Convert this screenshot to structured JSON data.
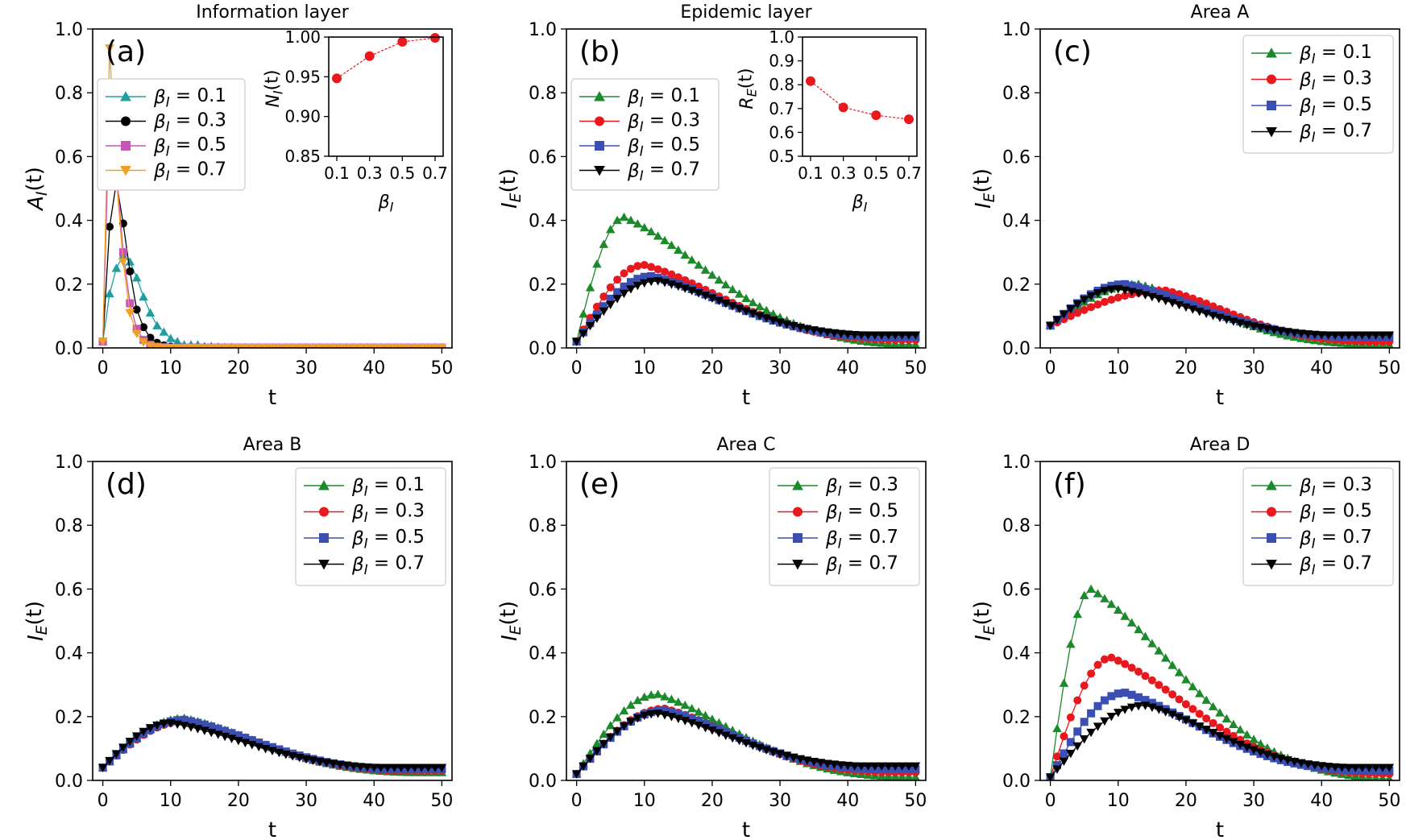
{
  "colors": {
    "teal": "#1f9e9e",
    "black": "#000000",
    "pink": "#c855b6",
    "orange": "#f0a020",
    "green": "#1a8a2a",
    "red": "#e8181e",
    "blue": "#3a4eb3",
    "inset_red": "#e8181e"
  },
  "chart_data": [
    {
      "id": "a",
      "type": "line",
      "panel_label": "(a)",
      "title": "Information layer",
      "xlabel": "t",
      "ylabel": "A_I(t)",
      "xlim": [
        -1.5,
        51.5
      ],
      "ylim": [
        0,
        1.0
      ],
      "xticks": [
        "0",
        "10",
        "20",
        "30",
        "40",
        "50"
      ],
      "yticks": [
        "0.0",
        "0.2",
        "0.4",
        "0.6",
        "0.8",
        "1.0"
      ],
      "legend": {
        "position": "upper-left",
        "entries": [
          "β_I = 0.1",
          "β_I = 0.3",
          "β_I = 0.5",
          "β_I = 0.7"
        ]
      },
      "series": [
        {
          "name": "β_I = 0.1",
          "color": "teal",
          "marker": "triangle-up",
          "values": [
            0.02,
            0.17,
            0.25,
            0.29,
            0.27,
            0.22,
            0.16,
            0.11,
            0.07,
            0.05,
            0.03,
            0.02,
            0.01,
            0.01,
            0.01,
            0.005,
            0.005,
            0.003,
            0.002,
            0.002,
            0.001,
            0.001,
            0.001,
            0.001,
            0.001,
            0.001,
            0.001,
            0.001,
            0.001,
            0.001,
            0.001,
            0.001,
            0.001,
            0.001,
            0.001,
            0.001,
            0.001,
            0.001,
            0.001,
            0.001,
            0.001,
            0.001,
            0.001,
            0.001,
            0.001,
            0.001,
            0.001,
            0.001,
            0.001,
            0.001,
            0.001
          ]
        },
        {
          "name": "β_I = 0.3",
          "color": "black",
          "marker": "circle",
          "values": [
            0.02,
            0.38,
            0.52,
            0.39,
            0.24,
            0.12,
            0.065,
            0.032,
            0.016,
            0.008,
            0.004,
            0.002,
            0.001,
            0.001,
            0.001,
            0.001,
            0.001,
            0.001,
            0.001,
            0.001,
            0.001,
            0.001,
            0.001,
            0.001,
            0.001,
            0.001,
            0.001,
            0.001,
            0.001,
            0.001,
            0.001,
            0.001,
            0.001,
            0.001,
            0.001,
            0.001,
            0.001,
            0.001,
            0.001,
            0.001,
            0.001,
            0.001,
            0.001,
            0.001,
            0.001,
            0.001,
            0.001,
            0.001,
            0.001,
            0.001,
            0.001
          ]
        },
        {
          "name": "β_I = 0.5",
          "color": "pink",
          "marker": "square",
          "values": [
            0.02,
            0.76,
            0.56,
            0.3,
            0.14,
            0.06,
            0.025,
            0.01,
            0.004,
            0.002,
            0.001,
            0.001,
            0.001,
            0.001,
            0.001,
            0.001,
            0.001,
            0.001,
            0.001,
            0.001,
            0.001,
            0.001,
            0.001,
            0.001,
            0.001,
            0.001,
            0.001,
            0.001,
            0.001,
            0.001,
            0.001,
            0.001,
            0.001,
            0.001,
            0.001,
            0.001,
            0.001,
            0.001,
            0.001,
            0.001,
            0.001,
            0.001,
            0.001,
            0.001,
            0.001,
            0.001,
            0.001,
            0.001,
            0.001,
            0.001,
            0.001
          ]
        },
        {
          "name": "β_I = 0.7",
          "color": "orange",
          "marker": "triangle-down",
          "values": [
            0.02,
            0.94,
            0.53,
            0.27,
            0.11,
            0.045,
            0.018,
            0.007,
            0.003,
            0.001,
            0.001,
            0.001,
            0.001,
            0.001,
            0.001,
            0.001,
            0.001,
            0.001,
            0.001,
            0.001,
            0.001,
            0.001,
            0.001,
            0.001,
            0.001,
            0.001,
            0.001,
            0.001,
            0.001,
            0.001,
            0.001,
            0.001,
            0.001,
            0.001,
            0.001,
            0.001,
            0.001,
            0.001,
            0.001,
            0.001,
            0.001,
            0.001,
            0.001,
            0.001,
            0.001,
            0.001,
            0.001,
            0.001,
            0.001,
            0.001,
            0.001
          ]
        }
      ],
      "inset": {
        "xlabel": "β_I",
        "ylabel": "N_I(t)",
        "categories": [
          "0.1",
          "0.3",
          "0.5",
          "0.7"
        ],
        "values": [
          0.948,
          0.976,
          0.994,
          0.999
        ],
        "ylim": [
          0.85,
          1.0
        ],
        "yticks": [
          "0.85",
          "0.90",
          "0.95",
          "1.00"
        ]
      }
    },
    {
      "id": "b",
      "type": "line",
      "panel_label": "(b)",
      "title": "Epidemic layer",
      "xlabel": "t",
      "ylabel": "I_E(t)",
      "xlim": [
        -1.5,
        51.5
      ],
      "ylim": [
        0,
        1.0
      ],
      "xticks": [
        "0",
        "10",
        "20",
        "30",
        "40",
        "50"
      ],
      "yticks": [
        "0.0",
        "0.2",
        "0.4",
        "0.6",
        "0.8",
        "1.0"
      ],
      "legend": {
        "position": "upper-left",
        "entries": [
          "β_I = 0.1",
          "β_I = 0.3",
          "β_I = 0.5",
          "β_I = 0.7"
        ]
      },
      "curve_params": [
        {
          "peak": 0.41,
          "peak_t": 7,
          "end": 0.01
        },
        {
          "peak": 0.26,
          "peak_t": 10,
          "end": 0.025
        },
        {
          "peak": 0.225,
          "peak_t": 11,
          "end": 0.035
        },
        {
          "peak": 0.21,
          "peak_t": 12,
          "end": 0.04
        }
      ],
      "start": 0.02,
      "series_names": [
        "β_I = 0.1",
        "β_I = 0.3",
        "β_I = 0.5",
        "β_I = 0.7"
      ],
      "series_colors": [
        "green",
        "red",
        "blue",
        "black"
      ],
      "series_markers": [
        "triangle-up",
        "circle",
        "square",
        "triangle-down"
      ],
      "inset": {
        "xlabel": "β_I",
        "ylabel": "R_E(t)",
        "categories": [
          "0.1",
          "0.3",
          "0.5",
          "0.7"
        ],
        "values": [
          0.815,
          0.705,
          0.672,
          0.655
        ],
        "ylim": [
          0.5,
          1.0
        ],
        "yticks": [
          "0.5",
          "0.6",
          "0.7",
          "0.8",
          "0.9",
          "1.0"
        ]
      }
    },
    {
      "id": "c",
      "type": "line",
      "panel_label": "(c)",
      "title": "Area A",
      "xlabel": "t",
      "ylabel": "I_E(t)",
      "xlim": [
        -1.5,
        51.5
      ],
      "ylim": [
        0,
        1.0
      ],
      "xticks": [
        "0",
        "10",
        "20",
        "30",
        "40",
        "50"
      ],
      "yticks": [
        "0.0",
        "0.2",
        "0.4",
        "0.6",
        "0.8",
        "1.0"
      ],
      "legend": {
        "position": "upper-right",
        "entries": [
          "β_I = 0.1",
          "β_I = 0.3",
          "β_I = 0.5",
          "β_I = 0.7"
        ]
      },
      "curve_params": [
        {
          "peak": 0.2,
          "peak_t": 13,
          "end": 0.01
        },
        {
          "peak": 0.18,
          "peak_t": 17,
          "end": 0.02
        },
        {
          "peak": 0.2,
          "peak_t": 11,
          "end": 0.035
        },
        {
          "peak": 0.185,
          "peak_t": 10,
          "end": 0.04
        }
      ],
      "start": 0.07,
      "series_names": [
        "β_I = 0.1",
        "β_I = 0.3",
        "β_I = 0.5",
        "β_I = 0.7"
      ],
      "series_colors": [
        "green",
        "red",
        "blue",
        "black"
      ],
      "series_markers": [
        "triangle-up",
        "circle",
        "square",
        "triangle-down"
      ]
    },
    {
      "id": "d",
      "type": "line",
      "panel_label": "(d)",
      "title": "Area B",
      "xlabel": "t",
      "ylabel": "I_E(t)",
      "xlim": [
        -1.5,
        51.5
      ],
      "ylim": [
        0,
        1.0
      ],
      "xticks": [
        "0",
        "10",
        "20",
        "30",
        "40",
        "50"
      ],
      "yticks": [
        "0.0",
        "0.2",
        "0.4",
        "0.6",
        "0.8",
        "1.0"
      ],
      "legend": {
        "position": "upper-right",
        "entries": [
          "β_I = 0.1",
          "β_I = 0.3",
          "β_I = 0.5",
          "β_I = 0.7"
        ]
      },
      "curve_params": [
        {
          "peak": 0.195,
          "peak_t": 12,
          "end": 0.025
        },
        {
          "peak": 0.185,
          "peak_t": 12,
          "end": 0.03
        },
        {
          "peak": 0.19,
          "peak_t": 12,
          "end": 0.035
        },
        {
          "peak": 0.18,
          "peak_t": 10,
          "end": 0.04
        }
      ],
      "start": 0.04,
      "series_names": [
        "β_I = 0.1",
        "β_I = 0.3",
        "β_I = 0.5",
        "β_I = 0.7"
      ],
      "series_colors": [
        "green",
        "red",
        "blue",
        "black"
      ],
      "series_markers": [
        "triangle-up",
        "circle",
        "square",
        "triangle-down"
      ]
    },
    {
      "id": "e",
      "type": "line",
      "panel_label": "(e)",
      "title": "Area C",
      "xlabel": "t",
      "ylabel": "I_E(t)",
      "xlim": [
        -1.5,
        51.5
      ],
      "ylim": [
        0,
        1.0
      ],
      "xticks": [
        "0",
        "10",
        "20",
        "30",
        "40",
        "50"
      ],
      "yticks": [
        "0.0",
        "0.2",
        "0.4",
        "0.6",
        "0.8",
        "1.0"
      ],
      "legend": {
        "position": "upper-right",
        "entries": [
          "β_I = 0.3",
          "β_I = 0.5",
          "β_I = 0.7",
          "β_I = 0.7"
        ]
      },
      "curve_params": [
        {
          "peak": 0.27,
          "peak_t": 12,
          "end": 0.01
        },
        {
          "peak": 0.225,
          "peak_t": 13,
          "end": 0.025
        },
        {
          "peak": 0.22,
          "peak_t": 13,
          "end": 0.035
        },
        {
          "peak": 0.21,
          "peak_t": 12,
          "end": 0.045
        }
      ],
      "start": 0.02,
      "series_names": [
        "β_I = 0.3",
        "β_I = 0.5",
        "β_I = 0.7",
        "β_I = 0.7"
      ],
      "series_colors": [
        "green",
        "red",
        "blue",
        "black"
      ],
      "series_markers": [
        "triangle-up",
        "circle",
        "square",
        "triangle-down"
      ]
    },
    {
      "id": "f",
      "type": "line",
      "panel_label": "(f)",
      "title": "Area D",
      "xlabel": "t",
      "ylabel": "I_E(t)",
      "xlim": [
        -1.5,
        51.5
      ],
      "ylim": [
        0,
        1.0
      ],
      "xticks": [
        "0",
        "10",
        "20",
        "30",
        "40",
        "50"
      ],
      "yticks": [
        "0.0",
        "0.2",
        "0.4",
        "0.6",
        "0.8",
        "1.0"
      ],
      "legend": {
        "position": "upper-right",
        "entries": [
          "β_I = 0.3",
          "β_I = 0.5",
          "β_I = 0.7",
          "β_I = 0.7"
        ]
      },
      "curve_params": [
        {
          "peak": 0.6,
          "peak_t": 6,
          "end": 0.005
        },
        {
          "peak": 0.385,
          "peak_t": 9,
          "end": 0.02
        },
        {
          "peak": 0.275,
          "peak_t": 11,
          "end": 0.03
        },
        {
          "peak": 0.235,
          "peak_t": 14,
          "end": 0.04
        }
      ],
      "start": 0.01,
      "series_names": [
        "β_I = 0.3",
        "β_I = 0.5",
        "β_I = 0.7",
        "β_I = 0.7"
      ],
      "series_colors": [
        "green",
        "red",
        "blue",
        "black"
      ],
      "series_markers": [
        "triangle-up",
        "circle",
        "square",
        "triangle-down"
      ]
    }
  ]
}
